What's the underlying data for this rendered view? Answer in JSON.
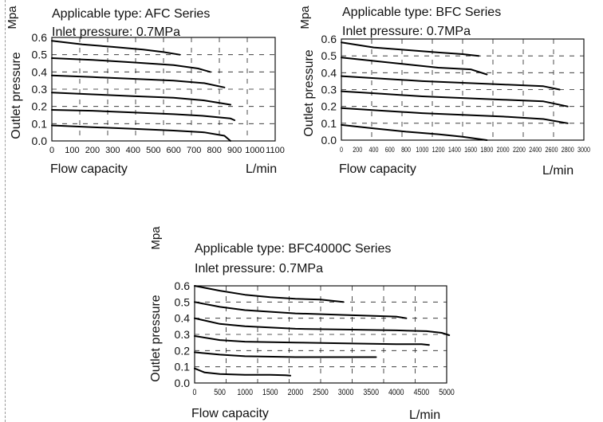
{
  "chart_data": [
    {
      "type": "line",
      "title": "Applicable type: AFC Series",
      "subtitle": "Inlet pressure: 0.7MPa",
      "xlabel": "Flow capacity",
      "xunit": "L/min",
      "ylabel": "Outlet pressure",
      "yunit": "Mpa",
      "xlim": [
        0,
        1100
      ],
      "ylim": [
        0,
        0.6
      ],
      "xticks": [
        0,
        100,
        200,
        300,
        400,
        500,
        600,
        700,
        800,
        900,
        1000,
        1100
      ],
      "yticks": [
        0.0,
        0.1,
        0.2,
        0.3,
        0.4,
        0.5,
        0.6
      ],
      "grid": true,
      "series": [
        {
          "x": [
            0,
            150,
            300,
            450,
            550,
            630
          ],
          "y": [
            0.58,
            0.56,
            0.545,
            0.53,
            0.515,
            0.5
          ]
        },
        {
          "x": [
            0,
            200,
            400,
            600,
            720,
            780
          ],
          "y": [
            0.48,
            0.47,
            0.455,
            0.44,
            0.42,
            0.4
          ]
        },
        {
          "x": [
            0,
            200,
            400,
            600,
            750,
            850
          ],
          "y": [
            0.38,
            0.37,
            0.36,
            0.35,
            0.335,
            0.31
          ]
        },
        {
          "x": [
            0,
            200,
            400,
            600,
            750,
            880
          ],
          "y": [
            0.28,
            0.27,
            0.26,
            0.25,
            0.235,
            0.21
          ]
        },
        {
          "x": [
            0,
            200,
            400,
            600,
            750,
            880,
            900
          ],
          "y": [
            0.18,
            0.175,
            0.165,
            0.155,
            0.145,
            0.13,
            0.12
          ]
        },
        {
          "x": [
            0,
            200,
            400,
            600,
            750,
            850,
            880
          ],
          "y": [
            0.09,
            0.08,
            0.07,
            0.06,
            0.05,
            0.03,
            0.0
          ]
        }
      ]
    },
    {
      "type": "line",
      "title": "Applicable type: BFC Series",
      "subtitle": "Inlet pressure: 0.7MPa",
      "xlabel": "Flow capacity",
      "xunit": "L/min",
      "ylabel": "Outlet pressure",
      "yunit": "Mpa",
      "xlim": [
        0,
        3000
      ],
      "ylim": [
        0,
        0.6
      ],
      "xticks": [
        0,
        200,
        400,
        600,
        800,
        1000,
        1200,
        1400,
        1600,
        1800,
        2000,
        2200,
        2400,
        2600,
        2800,
        3000
      ],
      "yticks": [
        0.0,
        0.1,
        0.2,
        0.3,
        0.4,
        0.5,
        0.6
      ],
      "grid": true,
      "series": [
        {
          "x": [
            0,
            400,
            800,
            1200,
            1500,
            1700
          ],
          "y": [
            0.58,
            0.55,
            0.535,
            0.52,
            0.51,
            0.5
          ]
        },
        {
          "x": [
            0,
            400,
            800,
            1200,
            1600,
            1800
          ],
          "y": [
            0.49,
            0.47,
            0.45,
            0.43,
            0.42,
            0.39
          ]
        },
        {
          "x": [
            0,
            500,
            1000,
            1500,
            2000,
            2500,
            2700
          ],
          "y": [
            0.38,
            0.365,
            0.35,
            0.34,
            0.33,
            0.32,
            0.3
          ]
        },
        {
          "x": [
            0,
            500,
            1000,
            1500,
            2000,
            2500,
            2800
          ],
          "y": [
            0.29,
            0.275,
            0.26,
            0.25,
            0.24,
            0.23,
            0.2
          ]
        },
        {
          "x": [
            0,
            500,
            1000,
            1500,
            2000,
            2500,
            2800
          ],
          "y": [
            0.19,
            0.175,
            0.16,
            0.15,
            0.14,
            0.125,
            0.1
          ]
        },
        {
          "x": [
            0,
            400,
            800,
            1200,
            1500,
            1800
          ],
          "y": [
            0.09,
            0.07,
            0.05,
            0.035,
            0.02,
            0.0
          ]
        }
      ]
    },
    {
      "type": "line",
      "title": "Applicable type: BFC4000C Series",
      "subtitle": "Inlet pressure: 0.7MPa",
      "xlabel": "Flow capacity",
      "xunit": "L/min",
      "ylabel": "Outlet pressure",
      "yunit": "Mpa",
      "xlim": [
        0,
        5000
      ],
      "ylim": [
        0,
        0.6
      ],
      "xticks": [
        0,
        500,
        1000,
        1500,
        2000,
        2500,
        3000,
        3500,
        4000,
        4500,
        5000
      ],
      "yticks": [
        0.0,
        0.1,
        0.2,
        0.3,
        0.4,
        0.5,
        0.6
      ],
      "grid": true,
      "series": [
        {
          "x": [
            0,
            500,
            1000,
            1500,
            2000,
            2500,
            2950
          ],
          "y": [
            0.6,
            0.57,
            0.545,
            0.53,
            0.52,
            0.515,
            0.5
          ]
        },
        {
          "x": [
            0,
            500,
            1000,
            2000,
            3000,
            3500,
            4000,
            4200
          ],
          "y": [
            0.5,
            0.47,
            0.45,
            0.43,
            0.42,
            0.415,
            0.41,
            0.4
          ]
        },
        {
          "x": [
            0,
            500,
            1000,
            2000,
            3000,
            4000,
            4600,
            4900,
            5050
          ],
          "y": [
            0.4,
            0.365,
            0.35,
            0.335,
            0.33,
            0.325,
            0.32,
            0.31,
            0.295
          ]
        },
        {
          "x": [
            0,
            500,
            1000,
            2000,
            3000,
            4000,
            4500,
            4650
          ],
          "y": [
            0.29,
            0.265,
            0.255,
            0.25,
            0.245,
            0.24,
            0.24,
            0.235
          ]
        },
        {
          "x": [
            0,
            500,
            1000,
            2000,
            3000,
            3500,
            3600
          ],
          "y": [
            0.19,
            0.175,
            0.165,
            0.16,
            0.16,
            0.16,
            0.16
          ]
        },
        {
          "x": [
            0,
            200,
            500,
            1000,
            1500,
            1800,
            1900
          ],
          "y": [
            0.09,
            0.065,
            0.055,
            0.05,
            0.05,
            0.048,
            0.045
          ]
        }
      ]
    }
  ]
}
